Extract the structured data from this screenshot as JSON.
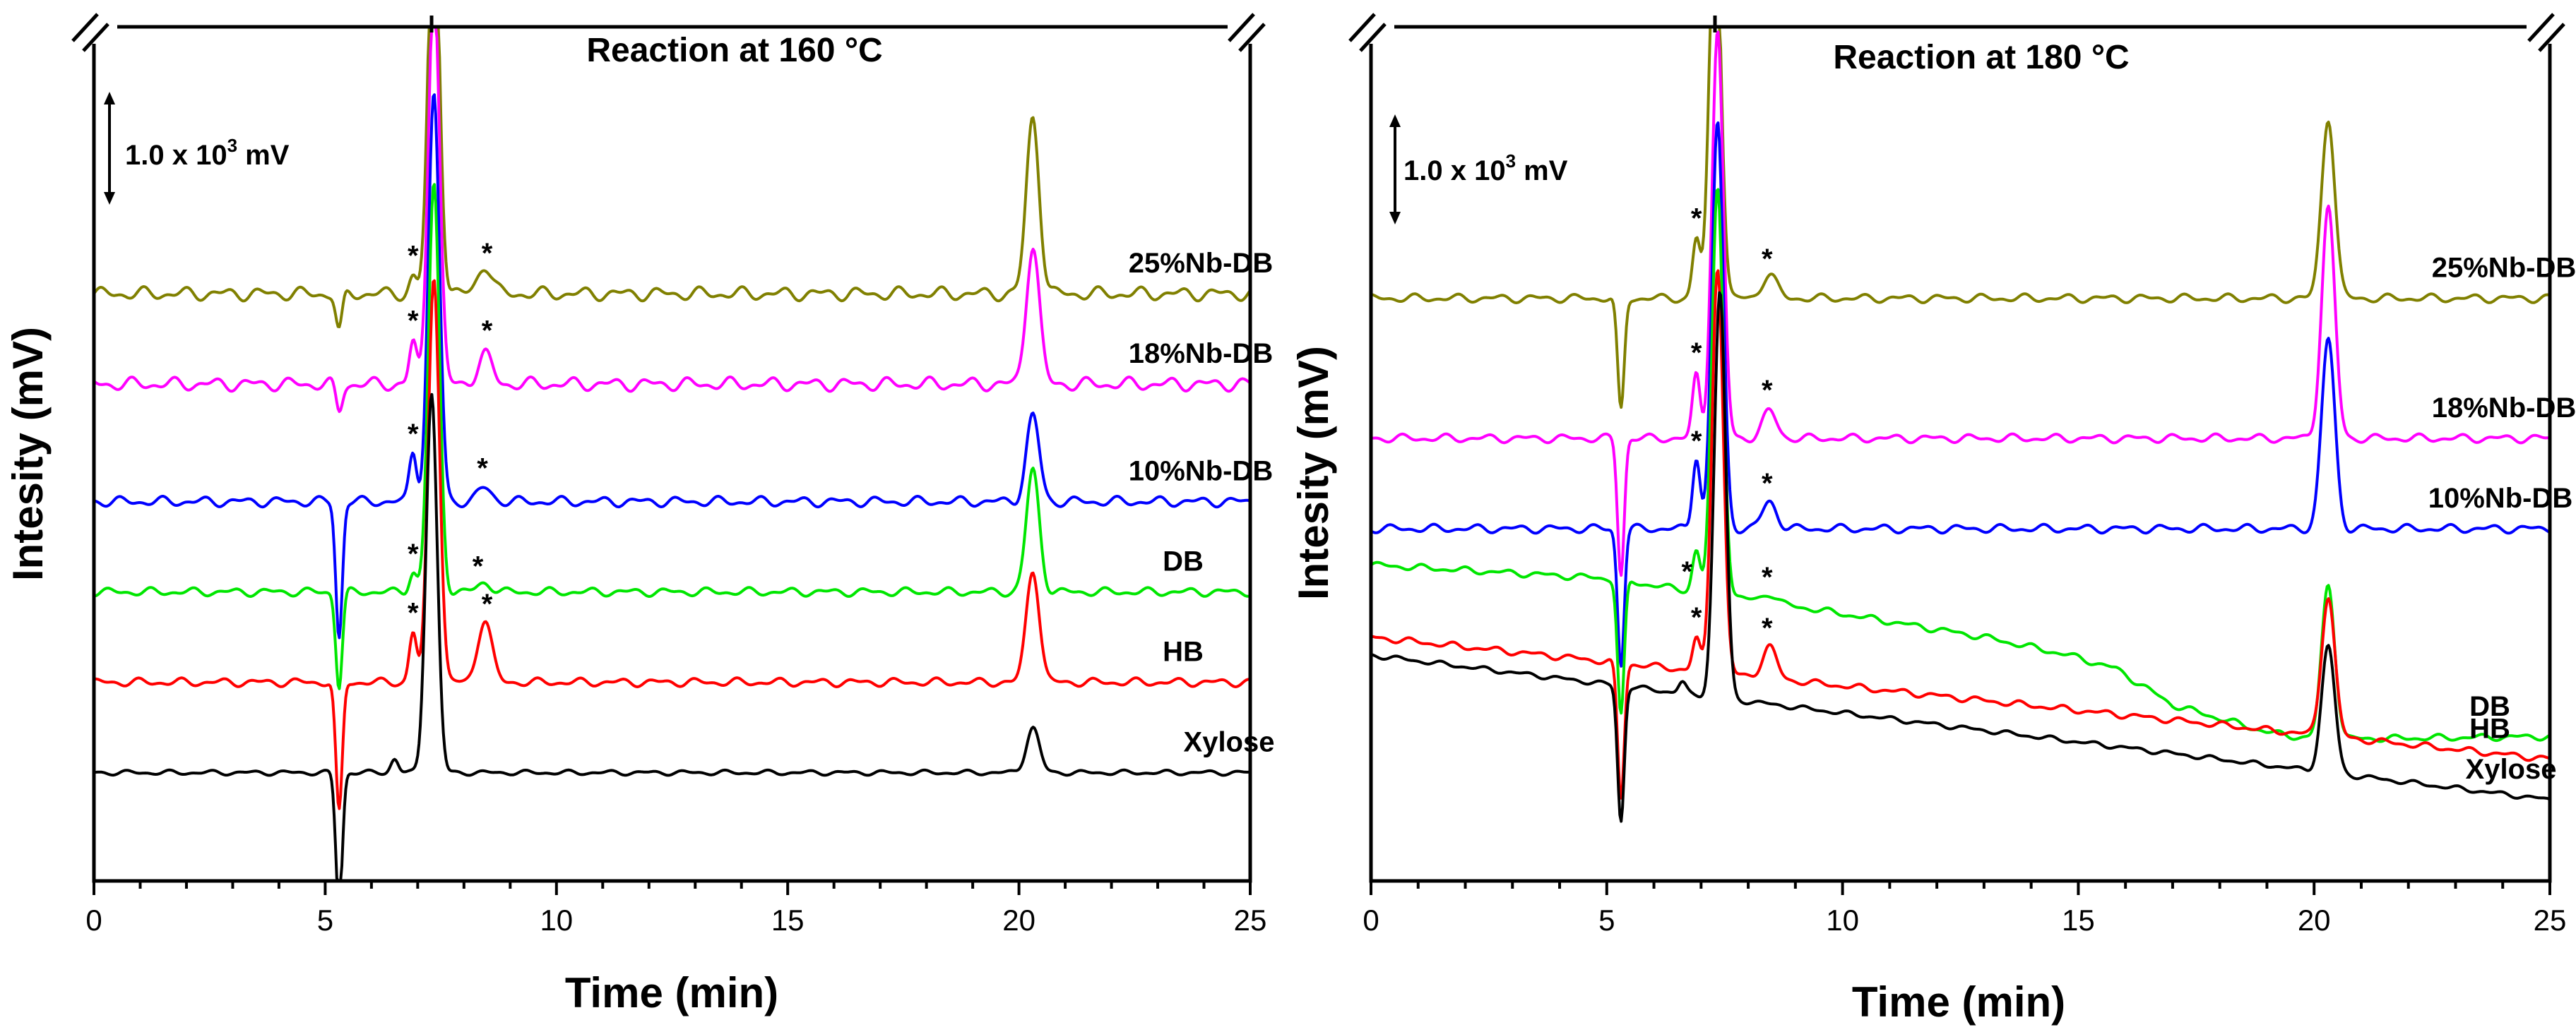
{
  "chart_data": [
    {
      "type": "line",
      "title": "Reaction at 160 °C",
      "xlabel": "Time (min)",
      "ylabel": "Intesity (mV)",
      "xlim": [
        0,
        25
      ],
      "x_ticks": [
        0,
        5,
        10,
        15,
        20,
        25
      ],
      "x_tick_labels": [
        "0",
        "5",
        "10",
        "15",
        "20",
        "25"
      ],
      "yticks_shown": false,
      "scale_bar": {
        "value": "1.0 x 10",
        "exponent": "3",
        "unit": "mV"
      },
      "y_units": "x10^3 mV (relative, offset traces)",
      "series": [
        {
          "name": "25%Nb-DB",
          "color": "#808000",
          "baseline": 5.85,
          "dip": [
            5.3,
            0.42
          ],
          "fused_peak": [
            7.35,
            4.5
          ],
          "side_peak_a": [
            6.9,
            0.18
          ],
          "side_peak_b": [
            8.45,
            0.32
          ],
          "hmf_peak": [
            20.3,
            1.95
          ],
          "noise": 0.08,
          "drift": 0,
          "starred": [
            6.9,
            8.5
          ]
        },
        {
          "name": "18%Nb-DB",
          "color": "#ff00ff",
          "baseline": 4.85,
          "dip": [
            5.3,
            0.3
          ],
          "fused_peak": [
            7.35,
            4.5
          ],
          "side_peak_a": [
            6.9,
            0.45
          ],
          "side_peak_b": [
            8.45,
            0.33
          ],
          "hmf_peak": [
            20.3,
            1.55
          ],
          "noise": 0.08,
          "drift": 0,
          "starred": [
            6.9,
            8.5
          ]
        },
        {
          "name": "10%Nb-DB",
          "color": "#0000ff",
          "baseline": 3.55,
          "dip": [
            5.3,
            1.5
          ],
          "fused_peak": [
            7.35,
            4.5
          ],
          "side_peak_a": [
            6.9,
            0.55
          ],
          "side_peak_b": [
            8.45,
            0.15
          ],
          "hmf_peak": [
            20.3,
            0.95
          ],
          "noise": 0.06,
          "drift": 0,
          "starred": [
            6.9,
            8.4
          ]
        },
        {
          "name": "DB",
          "color": "#00e600",
          "baseline": 2.55,
          "dip": [
            5.3,
            1.05
          ],
          "fused_peak": [
            7.35,
            4.5
          ],
          "side_peak_a": [
            6.9,
            0.22
          ],
          "side_peak_b": [
            8.45,
            0.1
          ],
          "hmf_peak": [
            20.3,
            1.35
          ],
          "noise": 0.05,
          "drift": 0,
          "starred": [
            6.9,
            8.3
          ]
        },
        {
          "name": "HB",
          "color": "#ff0000",
          "baseline": 1.55,
          "dip": [
            5.3,
            1.45
          ],
          "fused_peak": [
            7.35,
            4.5
          ],
          "side_peak_a": [
            6.9,
            0.55
          ],
          "side_peak_b": [
            8.45,
            0.7
          ],
          "hmf_peak": [
            20.3,
            1.25
          ],
          "noise": 0.05,
          "drift": 0,
          "starred": [
            6.9,
            8.5
          ]
        },
        {
          "name": "Xylose",
          "color": "#000000",
          "baseline": 0.55,
          "dip": [
            5.3,
            1.5
          ],
          "fused_peak": [
            7.3,
            4.2
          ],
          "side_peak_a": [
            6.5,
            0.15
          ],
          "side_peak_b": [
            8.45,
            0.0
          ],
          "hmf_peak": [
            20.3,
            0.5
          ],
          "noise": 0.03,
          "drift": 0,
          "starred": []
        }
      ]
    },
    {
      "type": "line",
      "title": "Reaction at 180 °C",
      "xlabel": "Time (min)",
      "ylabel": "Intesity (mV)",
      "xlim": [
        0,
        25
      ],
      "x_ticks": [
        0,
        5,
        10,
        15,
        20,
        25
      ],
      "x_tick_labels": [
        "0",
        "5",
        "10",
        "15",
        "20",
        "25"
      ],
      "yticks_shown": false,
      "scale_bar": {
        "value": "1.0 x 10",
        "exponent": "3",
        "unit": "mV"
      },
      "y_units": "x10^3 mV (relative, offset traces)",
      "series": [
        {
          "name": "25%Nb-DB",
          "color": "#808000",
          "baseline": 5.8,
          "dip": [
            5.3,
            1.25
          ],
          "fused_peak": [
            7.3,
            4.5
          ],
          "side_peak_a": [
            6.9,
            0.65
          ],
          "side_peak_b": [
            8.45,
            0.27
          ],
          "hmf_peak": [
            20.3,
            2.0
          ],
          "noise": 0.05,
          "drift": 0,
          "starred": [
            6.9,
            8.4
          ]
        },
        {
          "name": "18%Nb-DB",
          "color": "#ff00ff",
          "baseline": 4.25,
          "dip": [
            5.3,
            1.5
          ],
          "fused_peak": [
            7.35,
            4.5
          ],
          "side_peak_a": [
            6.9,
            0.7
          ],
          "side_peak_b": [
            8.45,
            0.3
          ],
          "hmf_peak": [
            20.3,
            2.55
          ],
          "noise": 0.05,
          "drift": 0,
          "starred": [
            6.9,
            8.4
          ]
        },
        {
          "name": "10%Nb-DB",
          "color": "#0000ff",
          "baseline": 3.25,
          "dip": [
            5.3,
            1.5
          ],
          "fused_peak": [
            7.35,
            4.5
          ],
          "side_peak_a": [
            6.9,
            0.8
          ],
          "side_peak_b": [
            8.45,
            0.3
          ],
          "hmf_peak": [
            20.3,
            2.1
          ],
          "noise": 0.05,
          "drift": 0,
          "starred": [
            6.9,
            8.4
          ]
        },
        {
          "name": "DB",
          "color": "#00e600",
          "baseline": 0.95,
          "dip": [
            5.3,
            1.5
          ],
          "fused_peak": [
            7.35,
            4.5
          ],
          "side_peak_a": [
            6.9,
            0.45
          ],
          "side_peak_b": [
            8.45,
            0.1
          ],
          "hmf_peak": [
            20.3,
            1.7
          ],
          "noise": 0.04,
          "drift": 0,
          "starred": [
            6.7,
            8.4
          ],
          "custom_baseline": [
            [
              0,
              2.85
            ],
            [
              5.0,
              2.7
            ],
            [
              9.5,
              2.35
            ],
            [
              13.0,
              2.05
            ],
            [
              14.8,
              1.85
            ],
            [
              15.8,
              1.7
            ],
            [
              17.0,
              1.3
            ],
            [
              19.0,
              1.0
            ],
            [
              20.0,
              0.92
            ],
            [
              25,
              0.95
            ]
          ]
        },
        {
          "name": "HB",
          "color": "#ff0000",
          "baseline": 2.05,
          "dip": [
            5.3,
            1.5
          ],
          "fused_peak": [
            7.35,
            4.5
          ],
          "side_peak_a": [
            6.9,
            0.35
          ],
          "side_peak_b": [
            8.45,
            0.35
          ],
          "hmf_peak": [
            20.3,
            1.55
          ],
          "noise": 0.04,
          "drift": -1.35,
          "starred": [
            6.9,
            8.4
          ]
        },
        {
          "name": "Xylose",
          "color": "#000000",
          "baseline": 1.85,
          "dip": [
            5.3,
            1.5
          ],
          "fused_peak": [
            7.4,
            4.5
          ],
          "side_peak_a": [
            6.6,
            0.12
          ],
          "side_peak_b": [
            8.45,
            0.0
          ],
          "hmf_peak": [
            20.3,
            1.4
          ],
          "noise": 0.03,
          "drift": -1.6,
          "starred": []
        }
      ]
    }
  ]
}
